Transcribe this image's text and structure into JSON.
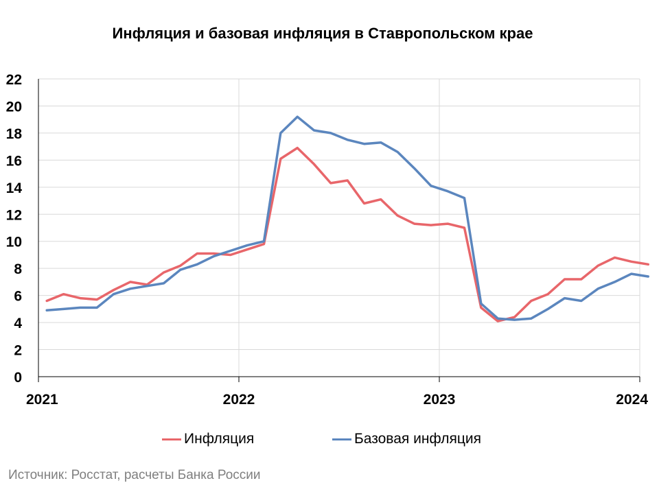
{
  "title": "Инфляция и базовая инфляция в Ставропольском крае",
  "source": "Источник: Росстат, расчеты Банка России",
  "colors": {
    "inflation": "#e8666a",
    "core": "#5b86be",
    "grid": "#d9d9d9",
    "axis": "#000000"
  },
  "chart_data": {
    "type": "line",
    "title": "Инфляция и базовая инфляция в Ставропольском крае",
    "xlabel": "",
    "ylabel": "",
    "ylim": [
      0,
      22
    ],
    "yticks": [
      "0",
      "2",
      "4",
      "6",
      "8",
      "10",
      "12",
      "14",
      "16",
      "18",
      "20",
      "22"
    ],
    "xlim": [
      0,
      36
    ],
    "xticks": [
      {
        "label": "2021",
        "x": 0
      },
      {
        "label": "2022",
        "x": 12
      },
      {
        "label": "2023",
        "x": 24
      },
      {
        "label": "2024",
        "x": 36
      }
    ],
    "grid": true,
    "legend_position": "bottom",
    "series": [
      {
        "name": "Инфляция",
        "color": "#e8666a",
        "x": [
          0.5,
          1.5,
          2.5,
          3.5,
          4.5,
          5.5,
          6.5,
          7.5,
          8.5,
          9.5,
          10.5,
          11.5,
          12.5,
          13.5,
          14.5,
          15.5,
          16.5,
          17.5,
          18.5,
          19.5,
          20.5,
          21.5,
          22.5,
          23.5,
          24.5,
          25.5,
          26.5,
          27.5,
          28.5,
          29.5,
          30.5,
          31.5,
          32.5,
          33.5,
          34.5,
          35.5,
          36.5
        ],
        "values": [
          5.6,
          6.1,
          5.8,
          5.7,
          6.4,
          7.0,
          6.8,
          7.7,
          8.2,
          9.1,
          9.1,
          9.0,
          9.4,
          9.8,
          16.1,
          16.9,
          15.7,
          14.3,
          14.5,
          12.8,
          13.1,
          11.9,
          11.3,
          11.2,
          11.3,
          11.0,
          5.1,
          4.1,
          4.4,
          5.6,
          6.1,
          7.2,
          7.2,
          8.2,
          8.8,
          8.5,
          8.3
        ]
      },
      {
        "name": "Базовая инфляция",
        "color": "#5b86be",
        "x": [
          0.5,
          1.5,
          2.5,
          3.5,
          4.5,
          5.5,
          6.5,
          7.5,
          8.5,
          9.5,
          10.5,
          11.5,
          12.5,
          13.5,
          14.5,
          15.5,
          16.5,
          17.5,
          18.5,
          19.5,
          20.5,
          21.5,
          22.5,
          23.5,
          24.5,
          25.5,
          26.5,
          27.5,
          28.5,
          29.5,
          30.5,
          31.5,
          32.5,
          33.5,
          34.5,
          35.5,
          36.5
        ],
        "values": [
          4.9,
          5.0,
          5.1,
          5.1,
          6.1,
          6.5,
          6.7,
          6.9,
          7.9,
          8.3,
          8.9,
          9.3,
          9.7,
          10.0,
          18.0,
          19.2,
          18.2,
          18.0,
          17.5,
          17.2,
          17.3,
          16.6,
          15.4,
          14.1,
          13.7,
          13.2,
          5.4,
          4.3,
          4.2,
          4.3,
          5.0,
          5.8,
          5.6,
          6.5,
          7.0,
          7.6,
          7.4
        ]
      }
    ]
  }
}
